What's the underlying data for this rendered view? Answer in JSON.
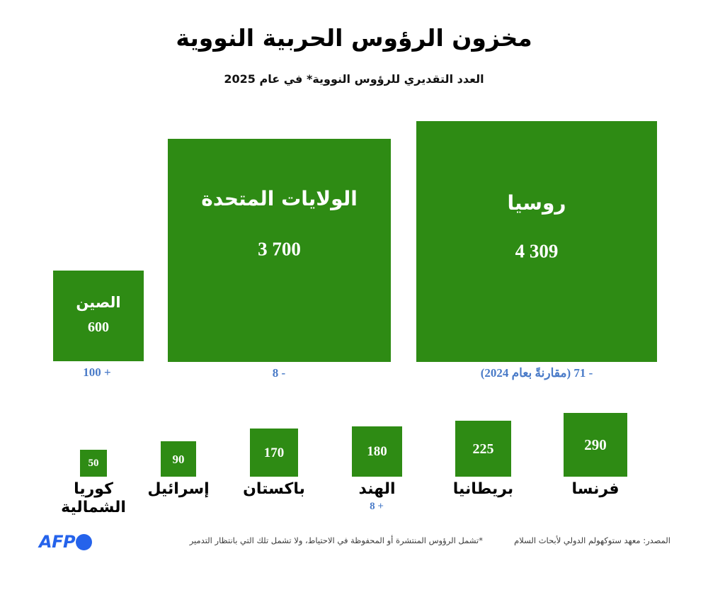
{
  "header": {
    "title": "مخزون الرؤوس الحربية النووية",
    "subtitle": "العدد التقديري للرؤوس النووية* في عام 2025"
  },
  "colors": {
    "box_green": "#2e8b14",
    "annotation_blue": "#4a7bc8",
    "afp_blue": "#2563eb",
    "footer_gray": "#3c3c3c"
  },
  "chart_data": {
    "type": "proportional-squares",
    "title": "مخزون الرؤوس الحربية النووية",
    "subtitle": "العدد التقديري للرؤوس النووية* في عام 2025",
    "year": "2025",
    "legend_position": "none",
    "series": [
      {
        "key": "russia",
        "label": "روسيا",
        "value": 4309,
        "value_display": "4 309",
        "change": -71,
        "change_display": "- 71 (مقارنةً بعام 2024)"
      },
      {
        "key": "united-states",
        "label": "الولايات المتحدة",
        "value": 3700,
        "value_display": "3 700",
        "change": -8,
        "change_display": "- 8"
      },
      {
        "key": "china",
        "label": "الصين",
        "value": 600,
        "value_display": "600",
        "change": 100,
        "change_display": "+ 100"
      },
      {
        "key": "france",
        "label": "فرنسا",
        "value": 290,
        "value_display": "290"
      },
      {
        "key": "britain",
        "label": "بريطانيا",
        "value": 225,
        "value_display": "225"
      },
      {
        "key": "india",
        "label": "الهند",
        "value": 180,
        "value_display": "180",
        "change": 8,
        "change_display": "+ 8"
      },
      {
        "key": "pakistan",
        "label": "باكستان",
        "value": 170,
        "value_display": "170"
      },
      {
        "key": "israel",
        "label": "إسرائيل",
        "value": 90,
        "value_display": "90"
      },
      {
        "key": "north-korea",
        "label": "كوريا الشمالية",
        "value": 50,
        "value_display": "50"
      }
    ]
  },
  "footer": {
    "footnote": "*تشمل الرؤوس المنتشرة أو المحفوظة في الاحتياط، ولا تشمل تلك التي بانتظار التدمير",
    "source": "المصدر: معهد ستوكهولم الدولي لأبحاث السلام",
    "logo_text": "AFP"
  }
}
